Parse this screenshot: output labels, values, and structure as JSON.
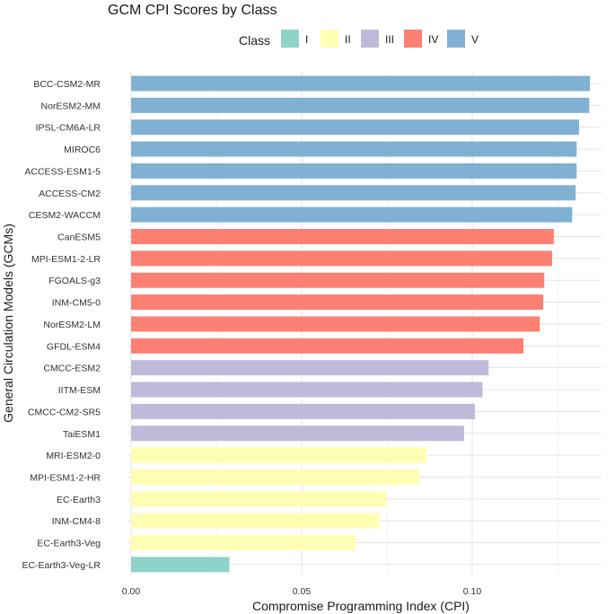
{
  "chart_data": {
    "type": "bar",
    "orientation": "horizontal",
    "title": "GCM CPI Scores by Class",
    "xlabel": "Compromise Programming Index (CPI)",
    "ylabel": "General Circulation Models (GCMs)",
    "xlim": [
      0,
      0.136
    ],
    "xticks": [
      0.0,
      0.05,
      0.1
    ],
    "xtick_labels": [
      "0.00",
      "0.05",
      "0.10"
    ],
    "grid": true,
    "legend": {
      "title": "Class",
      "position": "top",
      "entries": [
        {
          "label": "I",
          "color": "#8dd3c7"
        },
        {
          "label": "II",
          "color": "#ffffb3"
        },
        {
          "label": "III",
          "color": "#bebada"
        },
        {
          "label": "IV",
          "color": "#fb8072"
        },
        {
          "label": "V",
          "color": "#80b1d3"
        }
      ]
    },
    "categories": [
      "BCC-CSM2-MR",
      "NorESM2-MM",
      "IPSL-CM6A-LR",
      "MIROC6",
      "ACCESS-ESM1-5",
      "ACCESS-CM2",
      "CESM2-WACCM",
      "CanESM5",
      "MPI-ESM1-2-LR",
      "FGOALS-g3",
      "INM-CM5-0",
      "NorESM2-LM",
      "GFDL-ESM4",
      "CMCC-ESM2",
      "IITM-ESM",
      "CMCC-CM2-SR5",
      "TaiESM1",
      "MRI-ESM2-0",
      "MPI-ESM1-2-HR",
      "EC-Earth3",
      "INM-CM4-8",
      "EC-Earth3-Veg",
      "EC-Earth3-Veg-LR"
    ],
    "values": [
      0.1345,
      0.1343,
      0.1313,
      0.1306,
      0.1306,
      0.1303,
      0.1293,
      0.1239,
      0.1234,
      0.1211,
      0.1208,
      0.1198,
      0.115,
      0.1048,
      0.103,
      0.1008,
      0.0976,
      0.0866,
      0.0845,
      0.0748,
      0.0727,
      0.0657,
      0.0288
    ],
    "classes": [
      "V",
      "V",
      "V",
      "V",
      "V",
      "V",
      "V",
      "IV",
      "IV",
      "IV",
      "IV",
      "IV",
      "IV",
      "III",
      "III",
      "III",
      "III",
      "II",
      "II",
      "II",
      "II",
      "II",
      "I"
    ]
  }
}
